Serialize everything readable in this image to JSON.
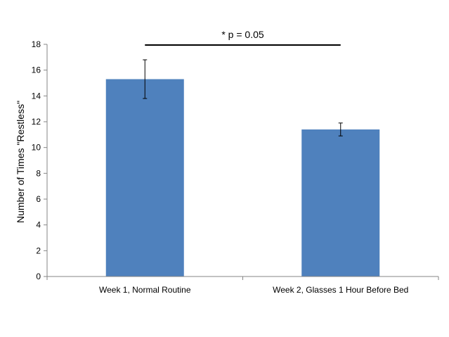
{
  "chart_data": {
    "type": "bar",
    "categories": [
      "Week 1, Normal Routine",
      "Week 2, Glasses 1 Hour Before Bed"
    ],
    "values": [
      15.3,
      11.4
    ],
    "error_bars": [
      1.5,
      0.5
    ],
    "ylabel": "Number of Times \"Restless\"",
    "xlabel": "",
    "ylim": [
      0,
      18
    ],
    "yticks": [
      "0",
      "2",
      "4",
      "6",
      "8",
      "10",
      "12",
      "14",
      "16",
      "18"
    ],
    "grid": false,
    "legend": "none",
    "annotation": "* p = 0.05",
    "bar_color": "#4F81BD"
  }
}
